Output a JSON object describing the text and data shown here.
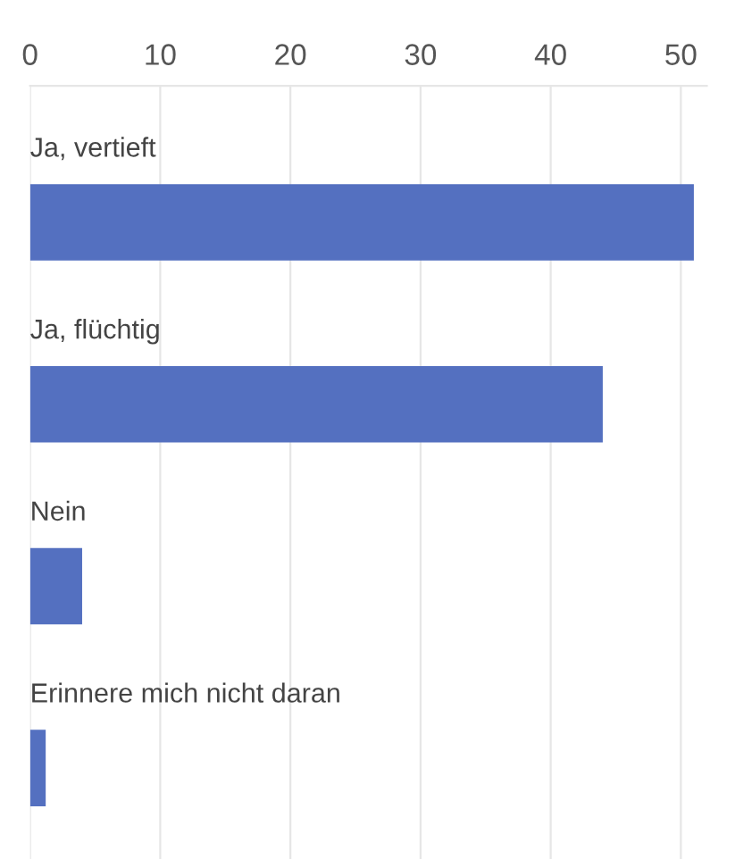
{
  "chart_data": {
    "type": "bar",
    "orientation": "horizontal",
    "categories": [
      "Ja, vertieft",
      "Ja, flüchtig",
      "Nein",
      "Erinnere mich nicht daran"
    ],
    "values": [
      51,
      44,
      4,
      1.2
    ],
    "color": "#5470c0",
    "xlim": [
      0,
      52
    ],
    "xticks": [
      0,
      10,
      20,
      30,
      40,
      50
    ],
    "grid": "x"
  }
}
